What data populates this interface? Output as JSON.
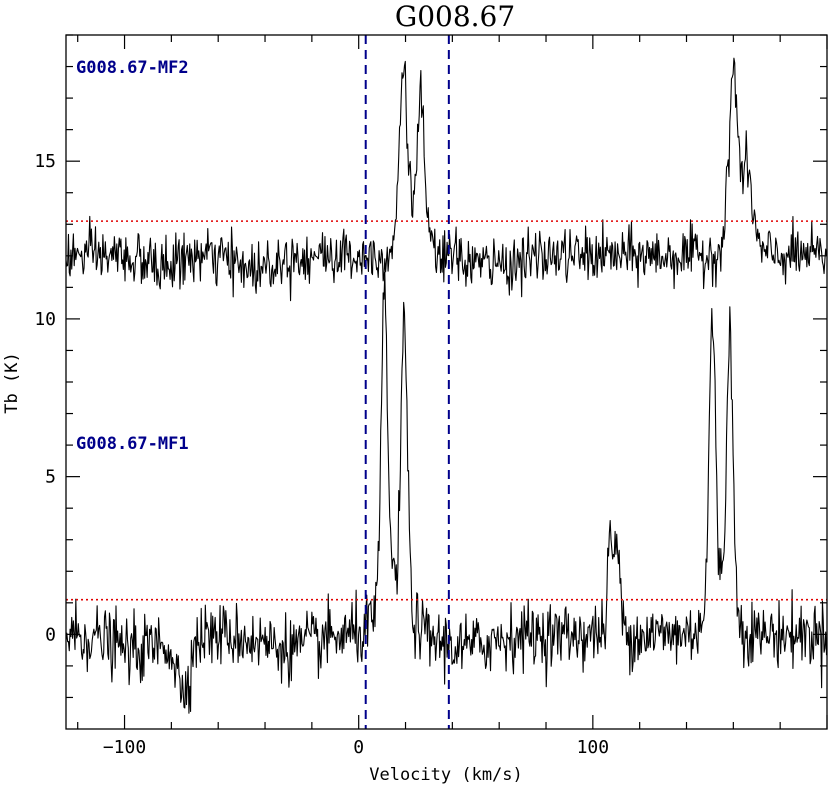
{
  "chart_data": {
    "type": "line",
    "title": "G008.67",
    "xlabel": "Velocity (km/s)",
    "ylabel": "Tb (K)",
    "xlim": [
      -125,
      200
    ],
    "ylim": [
      -3,
      19
    ],
    "x_ticks": [
      -100,
      0,
      100
    ],
    "y_ticks": [
      0,
      5,
      10,
      15
    ],
    "grid": false,
    "colors": {
      "spectrum": "#000000",
      "threshold": "#e00000",
      "vline": "#00008b",
      "label": "#00008b"
    },
    "vertical_lines": [
      3,
      38.5
    ],
    "series": [
      {
        "name": "G008.67-MF2",
        "baseline": 12.0,
        "noise_rms": 0.42,
        "threshold": 13.1,
        "features": [
          {
            "kind": "peak",
            "center": 19,
            "width": 1.6,
            "amplitude": 5.2
          },
          {
            "kind": "peak",
            "center": 26.5,
            "width": 1.5,
            "amplitude": 4.3
          },
          {
            "kind": "peak",
            "center": 22.5,
            "width": 4.5,
            "amplitude": 1.2
          },
          {
            "kind": "peak",
            "center": 160,
            "width": 1.8,
            "amplitude": 5.2
          },
          {
            "kind": "peak",
            "center": 166,
            "width": 2.2,
            "amplitude": 2.2
          },
          {
            "kind": "peak",
            "center": 162,
            "width": 5,
            "amplitude": 0.7
          },
          {
            "kind": "dip",
            "center": -85,
            "width": 7,
            "amplitude": -0.35
          },
          {
            "kind": "dip",
            "center": -45,
            "width": 8,
            "amplitude": -0.4
          },
          {
            "kind": "dip",
            "center": 58,
            "width": 10,
            "amplitude": -0.3
          }
        ]
      },
      {
        "name": "G008.67-MF1",
        "baseline": 0.0,
        "noise_rms": 0.5,
        "threshold": 1.1,
        "features": [
          {
            "kind": "peak",
            "center": 11,
            "width": 1.3,
            "amplitude": 9.5
          },
          {
            "kind": "peak",
            "center": 19.5,
            "width": 1.3,
            "amplitude": 8.7
          },
          {
            "kind": "peak",
            "center": 15,
            "width": 5.5,
            "amplitude": 1.8
          },
          {
            "kind": "peak",
            "center": 107.5,
            "width": 0.9,
            "amplitude": 2.5
          },
          {
            "kind": "peak",
            "center": 110.5,
            "width": 0.9,
            "amplitude": 2.2
          },
          {
            "kind": "peak",
            "center": 109,
            "width": 2.5,
            "amplitude": 1.0
          },
          {
            "kind": "peak",
            "center": 151,
            "width": 1.3,
            "amplitude": 8.8
          },
          {
            "kind": "peak",
            "center": 158.5,
            "width": 1.3,
            "amplitude": 8.6
          },
          {
            "kind": "peak",
            "center": 154.5,
            "width": 5,
            "amplitude": 1.6
          },
          {
            "kind": "dip",
            "center": -75,
            "width": 3,
            "amplitude": -1.6
          },
          {
            "kind": "dip",
            "center": -95,
            "width": 10,
            "amplitude": -0.5
          },
          {
            "kind": "dip",
            "center": -30,
            "width": 12,
            "amplitude": -0.4
          },
          {
            "kind": "dip",
            "center": 45,
            "width": 10,
            "amplitude": -0.4
          }
        ]
      }
    ]
  }
}
